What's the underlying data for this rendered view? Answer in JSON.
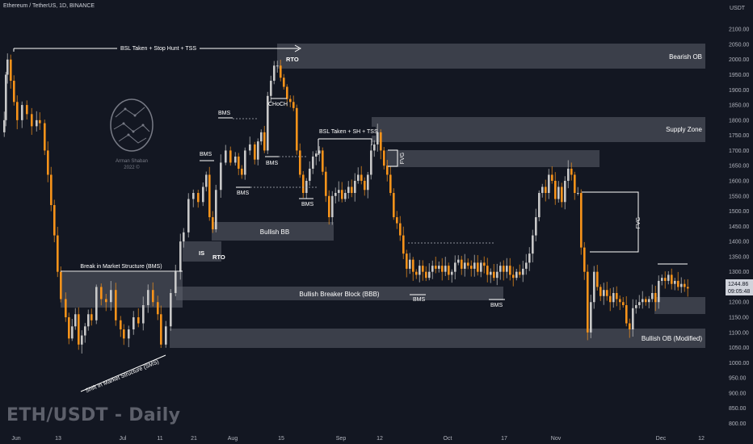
{
  "header": {
    "symbol": "Ethereum / TetherUS, 1D, BINANCE",
    "watermark": "ETH/USDT - Daily",
    "currency": "USDT"
  },
  "logo": {
    "name": "Arman Shaban",
    "year": "2022 ©",
    "icon": "brain-icon"
  },
  "price_label": {
    "price": "1244.86",
    "countdown": "09:05:48",
    "color": "#131722"
  },
  "colors": {
    "bull": "#c8c8c8",
    "bear": "#f7931a",
    "zone": "#5d606b",
    "background": "#131722"
  },
  "annotations": [
    {
      "text": "BSL Taken + Stop Hunt + TSS"
    },
    {
      "text": "RTO"
    },
    {
      "text": "Bearish OB"
    },
    {
      "text": "CHoCH"
    },
    {
      "text": "BMS"
    },
    {
      "text": "BSL Taken + SH + TSS"
    },
    {
      "text": "Supply Zone"
    },
    {
      "text": "FVG"
    },
    {
      "text": "Bullish BB"
    },
    {
      "text": "IS"
    },
    {
      "text": "Break in Market Structure (BMS)"
    },
    {
      "text": "Bullish Breaker Block (BBB)"
    },
    {
      "text": "Shift In Market Structure (SMS)"
    },
    {
      "text": "Bullish OB (Modified)"
    }
  ],
  "chart_data": {
    "type": "candlestick",
    "title": "Ethereum / TetherUS, 1D, BINANCE",
    "y_unit": "USDT",
    "ylim": [
      780,
      2175
    ],
    "y_ticks": [
      2100,
      2050,
      2000,
      1950,
      1900,
      1850,
      1800,
      1750,
      1700,
      1650,
      1600,
      1550,
      1500,
      1450,
      1400,
      1350,
      1300,
      1250,
      1200,
      1150,
      1100,
      1050,
      1000,
      950,
      900,
      850,
      800
    ],
    "x_ticks": [
      "Jun",
      "13",
      "Jul",
      "11",
      "21",
      "Aug",
      "15",
      "Sep",
      "12",
      "Oct",
      "17",
      "Nov",
      "Dec",
      "12"
    ],
    "last_price": 1244.86,
    "close_path": [
      {
        "t": 0,
        "c": 1760
      },
      {
        "t": 4,
        "c": 1800
      },
      {
        "t": 6,
        "c": 1950
      },
      {
        "t": 8,
        "c": 2000
      },
      {
        "t": 12,
        "c": 1930
      },
      {
        "t": 16,
        "c": 1860
      },
      {
        "t": 20,
        "c": 1800
      },
      {
        "t": 26,
        "c": 1850
      },
      {
        "t": 32,
        "c": 1820
      },
      {
        "t": 38,
        "c": 1780
      },
      {
        "t": 44,
        "c": 1800
      },
      {
        "t": 48,
        "c": 1790
      },
      {
        "t": 54,
        "c": 1700
      },
      {
        "t": 58,
        "c": 1620
      },
      {
        "t": 62,
        "c": 1520
      },
      {
        "t": 66,
        "c": 1420
      },
      {
        "t": 70,
        "c": 1300
      },
      {
        "t": 74,
        "c": 1210
      },
      {
        "t": 80,
        "c": 1150
      },
      {
        "t": 84,
        "c": 1080
      },
      {
        "t": 88,
        "c": 1120
      },
      {
        "t": 92,
        "c": 1160
      },
      {
        "t": 96,
        "c": 1060
      },
      {
        "t": 100,
        "c": 1090
      },
      {
        "t": 104,
        "c": 1120
      },
      {
        "t": 108,
        "c": 1160
      },
      {
        "t": 112,
        "c": 1140
      },
      {
        "t": 118,
        "c": 1250
      },
      {
        "t": 124,
        "c": 1210
      },
      {
        "t": 130,
        "c": 1200
      },
      {
        "t": 136,
        "c": 1240
      },
      {
        "t": 142,
        "c": 1140
      },
      {
        "t": 148,
        "c": 1110
      },
      {
        "t": 152,
        "c": 1080
      },
      {
        "t": 158,
        "c": 1110
      },
      {
        "t": 164,
        "c": 1150
      },
      {
        "t": 170,
        "c": 1130
      },
      {
        "t": 176,
        "c": 1190
      },
      {
        "t": 182,
        "c": 1240
      },
      {
        "t": 188,
        "c": 1200
      },
      {
        "t": 194,
        "c": 1160
      },
      {
        "t": 198,
        "c": 1060
      },
      {
        "t": 204,
        "c": 1120
      },
      {
        "t": 210,
        "c": 1230
      },
      {
        "t": 216,
        "c": 1300
      },
      {
        "t": 222,
        "c": 1400
      },
      {
        "t": 226,
        "c": 1430
      },
      {
        "t": 232,
        "c": 1540
      },
      {
        "t": 238,
        "c": 1560
      },
      {
        "t": 244,
        "c": 1530
      },
      {
        "t": 250,
        "c": 1580
      },
      {
        "t": 254,
        "c": 1620
      },
      {
        "t": 258,
        "c": 1480
      },
      {
        "t": 262,
        "c": 1440
      },
      {
        "t": 266,
        "c": 1570
      },
      {
        "t": 272,
        "c": 1660
      },
      {
        "t": 278,
        "c": 1700
      },
      {
        "t": 284,
        "c": 1660
      },
      {
        "t": 290,
        "c": 1680
      },
      {
        "t": 294,
        "c": 1640
      },
      {
        "t": 298,
        "c": 1620
      },
      {
        "t": 302,
        "c": 1700
      },
      {
        "t": 308,
        "c": 1720
      },
      {
        "t": 314,
        "c": 1670
      },
      {
        "t": 318,
        "c": 1730
      },
      {
        "t": 322,
        "c": 1760
      },
      {
        "t": 326,
        "c": 1700
      },
      {
        "t": 330,
        "c": 1880
      },
      {
        "t": 334,
        "c": 1930
      },
      {
        "t": 338,
        "c": 1980
      },
      {
        "t": 342,
        "c": 1980
      },
      {
        "t": 346,
        "c": 1940
      },
      {
        "t": 350,
        "c": 1910
      },
      {
        "t": 354,
        "c": 1870
      },
      {
        "t": 358,
        "c": 1860
      },
      {
        "t": 362,
        "c": 1840
      },
      {
        "t": 366,
        "c": 1700
      },
      {
        "t": 370,
        "c": 1620
      },
      {
        "t": 374,
        "c": 1560
      },
      {
        "t": 378,
        "c": 1600
      },
      {
        "t": 382,
        "c": 1640
      },
      {
        "t": 386,
        "c": 1680
      },
      {
        "t": 390,
        "c": 1690
      },
      {
        "t": 394,
        "c": 1700
      },
      {
        "t": 398,
        "c": 1630
      },
      {
        "t": 402,
        "c": 1550
      },
      {
        "t": 406,
        "c": 1480
      },
      {
        "t": 410,
        "c": 1550
      },
      {
        "t": 414,
        "c": 1560
      },
      {
        "t": 418,
        "c": 1570
      },
      {
        "t": 422,
        "c": 1540
      },
      {
        "t": 426,
        "c": 1560
      },
      {
        "t": 430,
        "c": 1580
      },
      {
        "t": 434,
        "c": 1560
      },
      {
        "t": 438,
        "c": 1600
      },
      {
        "t": 442,
        "c": 1620
      },
      {
        "t": 446,
        "c": 1600
      },
      {
        "t": 450,
        "c": 1570
      },
      {
        "t": 454,
        "c": 1620
      },
      {
        "t": 458,
        "c": 1700
      },
      {
        "t": 462,
        "c": 1720
      },
      {
        "t": 466,
        "c": 1760
      },
      {
        "t": 470,
        "c": 1700
      },
      {
        "t": 474,
        "c": 1650
      },
      {
        "t": 478,
        "c": 1620
      },
      {
        "t": 482,
        "c": 1560
      },
      {
        "t": 486,
        "c": 1480
      },
      {
        "t": 490,
        "c": 1460
      },
      {
        "t": 494,
        "c": 1420
      },
      {
        "t": 498,
        "c": 1360
      },
      {
        "t": 502,
        "c": 1310
      },
      {
        "t": 506,
        "c": 1340
      },
      {
        "t": 510,
        "c": 1300
      },
      {
        "t": 514,
        "c": 1290
      },
      {
        "t": 518,
        "c": 1320
      },
      {
        "t": 522,
        "c": 1300
      },
      {
        "t": 526,
        "c": 1280
      },
      {
        "t": 530,
        "c": 1300
      },
      {
        "t": 534,
        "c": 1320
      },
      {
        "t": 538,
        "c": 1310
      },
      {
        "t": 542,
        "c": 1320
      },
      {
        "t": 546,
        "c": 1300
      },
      {
        "t": 550,
        "c": 1320
      },
      {
        "t": 554,
        "c": 1290
      },
      {
        "t": 558,
        "c": 1300
      },
      {
        "t": 562,
        "c": 1330
      },
      {
        "t": 566,
        "c": 1340
      },
      {
        "t": 570,
        "c": 1310
      },
      {
        "t": 574,
        "c": 1330
      },
      {
        "t": 578,
        "c": 1320
      },
      {
        "t": 582,
        "c": 1310
      },
      {
        "t": 586,
        "c": 1330
      },
      {
        "t": 590,
        "c": 1300
      },
      {
        "t": 594,
        "c": 1330
      },
      {
        "t": 598,
        "c": 1320
      },
      {
        "t": 602,
        "c": 1290
      },
      {
        "t": 606,
        "c": 1300
      },
      {
        "t": 610,
        "c": 1280
      },
      {
        "t": 614,
        "c": 1300
      },
      {
        "t": 618,
        "c": 1320
      },
      {
        "t": 622,
        "c": 1300
      },
      {
        "t": 626,
        "c": 1320
      },
      {
        "t": 630,
        "c": 1290
      },
      {
        "t": 634,
        "c": 1280
      },
      {
        "t": 638,
        "c": 1300
      },
      {
        "t": 642,
        "c": 1290
      },
      {
        "t": 646,
        "c": 1310
      },
      {
        "t": 650,
        "c": 1330
      },
      {
        "t": 654,
        "c": 1360
      },
      {
        "t": 658,
        "c": 1420
      },
      {
        "t": 662,
        "c": 1480
      },
      {
        "t": 666,
        "c": 1560
      },
      {
        "t": 670,
        "c": 1580
      },
      {
        "t": 674,
        "c": 1560
      },
      {
        "t": 678,
        "c": 1620
      },
      {
        "t": 682,
        "c": 1600
      },
      {
        "t": 686,
        "c": 1540
      },
      {
        "t": 690,
        "c": 1580
      },
      {
        "t": 694,
        "c": 1530
      },
      {
        "t": 698,
        "c": 1600
      },
      {
        "t": 702,
        "c": 1640
      },
      {
        "t": 706,
        "c": 1620
      },
      {
        "t": 710,
        "c": 1560
      },
      {
        "t": 714,
        "c": 1560
      },
      {
        "t": 718,
        "c": 1380
      },
      {
        "t": 722,
        "c": 1300
      },
      {
        "t": 726,
        "c": 1100
      },
      {
        "t": 730,
        "c": 1200
      },
      {
        "t": 734,
        "c": 1300
      },
      {
        "t": 738,
        "c": 1250
      },
      {
        "t": 742,
        "c": 1220
      },
      {
        "t": 746,
        "c": 1240
      },
      {
        "t": 750,
        "c": 1220
      },
      {
        "t": 754,
        "c": 1200
      },
      {
        "t": 758,
        "c": 1230
      },
      {
        "t": 762,
        "c": 1210
      },
      {
        "t": 766,
        "c": 1200
      },
      {
        "t": 770,
        "c": 1190
      },
      {
        "t": 774,
        "c": 1130
      },
      {
        "t": 778,
        "c": 1110
      },
      {
        "t": 782,
        "c": 1180
      },
      {
        "t": 786,
        "c": 1190
      },
      {
        "t": 790,
        "c": 1200
      },
      {
        "t": 794,
        "c": 1210
      },
      {
        "t": 798,
        "c": 1200
      },
      {
        "t": 802,
        "c": 1210
      },
      {
        "t": 806,
        "c": 1230
      },
      {
        "t": 810,
        "c": 1200
      },
      {
        "t": 814,
        "c": 1270
      },
      {
        "t": 818,
        "c": 1280
      },
      {
        "t": 822,
        "c": 1270
      },
      {
        "t": 826,
        "c": 1290
      },
      {
        "t": 830,
        "c": 1260
      },
      {
        "t": 834,
        "c": 1270
      },
      {
        "t": 838,
        "c": 1250
      },
      {
        "t": 842,
        "c": 1260
      },
      {
        "t": 846,
        "c": 1250
      },
      {
        "t": 850,
        "c": 1245
      }
    ],
    "zones": [
      {
        "label": "Bearish OB",
        "y_top": 2030,
        "y_bottom": 1950
      },
      {
        "label": "Supply Zone",
        "y_top": 1785,
        "y_bottom": 1705
      },
      {
        "label": "FVG",
        "y_top": 1680,
        "y_bottom": 1620
      },
      {
        "label": "Bullish BB",
        "y_top": 1475,
        "y_bottom": 1415
      },
      {
        "label": "Break in Market Structure (BMS)",
        "y_top": 1290,
        "y_bottom": 1170
      },
      {
        "label": "Bullish Breaker Block (BBB)",
        "y_top": 1240,
        "y_bottom": 1195
      },
      {
        "label": "Bullish OB (Modified)",
        "y_top": 1100,
        "y_bottom": 1035
      },
      {
        "label": "",
        "y_top": 1200,
        "y_bottom": 1145
      }
    ]
  }
}
